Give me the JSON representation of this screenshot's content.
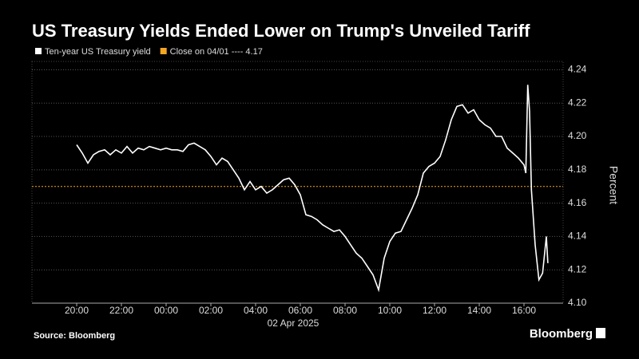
{
  "chart_data": {
    "type": "line",
    "title": "US Treasury Yields Ended Lower on Trump's Unveiled Tariff",
    "ylabel": "Percent",
    "x_sublabel": "02 Apr 2025",
    "source": "Source: Bloomberg",
    "brand": "Bloomberg",
    "x": [
      "20:00",
      "20:15",
      "20:30",
      "20:45",
      "21:00",
      "21:15",
      "21:30",
      "21:45",
      "22:00",
      "22:15",
      "22:30",
      "22:45",
      "23:00",
      "23:15",
      "23:30",
      "23:45",
      "00:00",
      "00:15",
      "00:30",
      "00:45",
      "01:00",
      "01:15",
      "01:30",
      "01:45",
      "02:00",
      "02:15",
      "02:30",
      "02:45",
      "03:00",
      "03:15",
      "03:30",
      "03:45",
      "04:00",
      "04:15",
      "04:30",
      "04:45",
      "05:00",
      "05:15",
      "05:30",
      "05:45",
      "06:00",
      "06:15",
      "06:30",
      "06:45",
      "07:00",
      "07:15",
      "07:30",
      "07:45",
      "08:00",
      "08:15",
      "08:30",
      "08:45",
      "09:00",
      "09:15",
      "09:30",
      "09:45",
      "10:00",
      "10:15",
      "10:30",
      "10:45",
      "11:00",
      "11:15",
      "11:30",
      "11:45",
      "12:00",
      "12:15",
      "12:30",
      "12:45",
      "13:00",
      "13:15",
      "13:30",
      "13:45",
      "14:00",
      "14:15",
      "14:30",
      "14:45",
      "15:00",
      "15:15",
      "15:30",
      "15:45",
      "16:00",
      "16:05",
      "16:10",
      "16:15",
      "16:20",
      "16:30",
      "16:40",
      "16:50",
      "17:00",
      "17:04"
    ],
    "series": [
      {
        "name": "Ten-year US Treasury yield",
        "color": "#ffffff",
        "values": [
          4.195,
          4.19,
          4.184,
          4.189,
          4.191,
          4.192,
          4.189,
          4.192,
          4.19,
          4.194,
          4.19,
          4.193,
          4.192,
          4.194,
          4.193,
          4.192,
          4.193,
          4.192,
          4.192,
          4.191,
          4.195,
          4.196,
          4.194,
          4.192,
          4.188,
          4.183,
          4.187,
          4.185,
          4.18,
          4.175,
          4.168,
          4.173,
          4.168,
          4.17,
          4.166,
          4.168,
          4.171,
          4.174,
          4.175,
          4.171,
          4.165,
          4.153,
          4.152,
          4.15,
          4.147,
          4.145,
          4.143,
          4.144,
          4.14,
          4.135,
          4.13,
          4.127,
          4.122,
          4.117,
          4.108,
          4.127,
          4.137,
          4.142,
          4.143,
          4.15,
          4.157,
          4.165,
          4.178,
          4.182,
          4.184,
          4.188,
          4.198,
          4.21,
          4.218,
          4.219,
          4.214,
          4.216,
          4.21,
          4.207,
          4.205,
          4.2,
          4.2,
          4.193,
          4.19,
          4.187,
          4.183,
          4.178,
          4.231,
          4.215,
          4.168,
          4.135,
          4.114,
          4.118,
          4.14,
          4.124
        ]
      }
    ],
    "reference": {
      "name": "Close on 04/01 ---- 4.17",
      "value": 4.17,
      "color": "#f5a623"
    },
    "xlim": [
      "18:00",
      "17:45"
    ],
    "xticks": [
      "20:00",
      "22:00",
      "00:00",
      "02:00",
      "04:00",
      "06:00",
      "08:00",
      "10:00",
      "12:00",
      "14:00",
      "16:00"
    ],
    "ylim": [
      4.1,
      4.245
    ],
    "yticks": [
      {
        "value": 4.1,
        "label": "4.10"
      },
      4.12,
      4.14,
      4.16,
      4.18,
      {
        "value": 4.2,
        "label": "4.20"
      },
      4.22,
      4.24
    ],
    "grid": true
  }
}
